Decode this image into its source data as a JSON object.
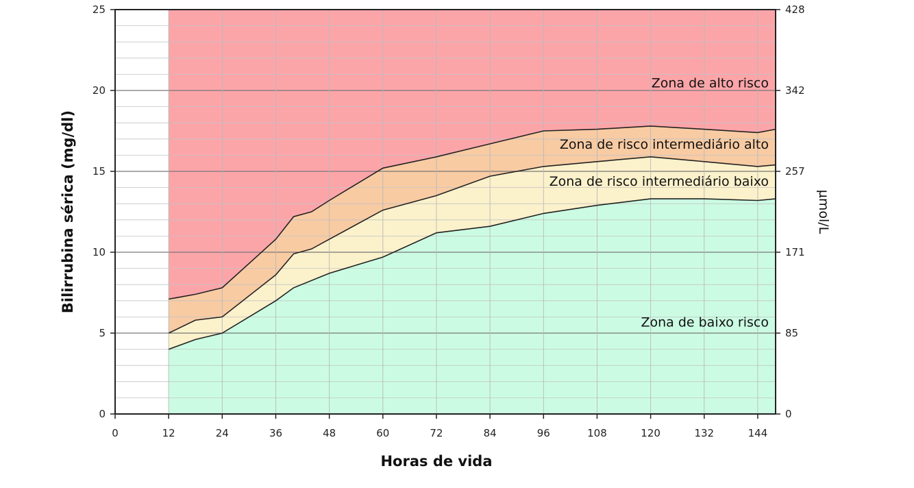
{
  "chart_data": {
    "type": "area",
    "xlabel": "Horas de vida",
    "ylabel": "Bilirrubina sérica (mg/dl)",
    "y2label": "µmol/L",
    "xlim": [
      0,
      148
    ],
    "ylim": [
      0,
      25
    ],
    "x_ticks": [
      0,
      12,
      24,
      36,
      48,
      60,
      72,
      84,
      96,
      108,
      120,
      132,
      144
    ],
    "y_ticks": [
      0,
      5,
      10,
      15,
      20,
      25
    ],
    "y2_ticks": [
      {
        "y": 0,
        "label": "0"
      },
      {
        "y": 5,
        "label": "85"
      },
      {
        "y": 10,
        "label": "171"
      },
      {
        "y": 15,
        "label": "257"
      },
      {
        "y": 20,
        "label": "342"
      },
      {
        "y": 25,
        "label": "428"
      }
    ],
    "grid": true,
    "minor_y_step": 1,
    "curves": {
      "p40": [
        [
          12,
          4.0
        ],
        [
          18,
          4.6
        ],
        [
          24,
          5.0
        ],
        [
          36,
          7.0
        ],
        [
          40,
          7.8
        ],
        [
          48,
          8.7
        ],
        [
          60,
          9.7
        ],
        [
          72,
          11.2
        ],
        [
          84,
          11.6
        ],
        [
          96,
          12.4
        ],
        [
          108,
          12.9
        ],
        [
          120,
          13.3
        ],
        [
          132,
          13.3
        ],
        [
          144,
          13.2
        ],
        [
          148,
          13.3
        ]
      ],
      "p75": [
        [
          12,
          5.0
        ],
        [
          18,
          5.8
        ],
        [
          24,
          6.0
        ],
        [
          36,
          8.6
        ],
        [
          40,
          9.9
        ],
        [
          44,
          10.2
        ],
        [
          48,
          10.8
        ],
        [
          60,
          12.6
        ],
        [
          72,
          13.5
        ],
        [
          84,
          14.7
        ],
        [
          96,
          15.3
        ],
        [
          108,
          15.6
        ],
        [
          120,
          15.9
        ],
        [
          132,
          15.6
        ],
        [
          144,
          15.3
        ],
        [
          148,
          15.4
        ]
      ],
      "p95": [
        [
          12,
          7.1
        ],
        [
          18,
          7.4
        ],
        [
          24,
          7.8
        ],
        [
          36,
          10.8
        ],
        [
          40,
          12.2
        ],
        [
          44,
          12.5
        ],
        [
          48,
          13.2
        ],
        [
          60,
          15.2
        ],
        [
          72,
          15.9
        ],
        [
          84,
          16.7
        ],
        [
          96,
          17.5
        ],
        [
          108,
          17.6
        ],
        [
          120,
          17.8
        ],
        [
          132,
          17.6
        ],
        [
          144,
          17.4
        ],
        [
          148,
          17.6
        ]
      ]
    },
    "zones": [
      {
        "name": "Zona de alto risco",
        "color": "#fca5a9",
        "label_y": 20.2
      },
      {
        "name": "Zona de risco intermediário alto",
        "color": "#f8cba3",
        "label_y": 16.4
      },
      {
        "name": "Zona de risco intermediário baixo",
        "color": "#fbf1cb",
        "label_y": 14.1
      },
      {
        "name": "Zona de baixo risco",
        "color": "#cbfce3",
        "label_y": 5.4
      }
    ]
  }
}
